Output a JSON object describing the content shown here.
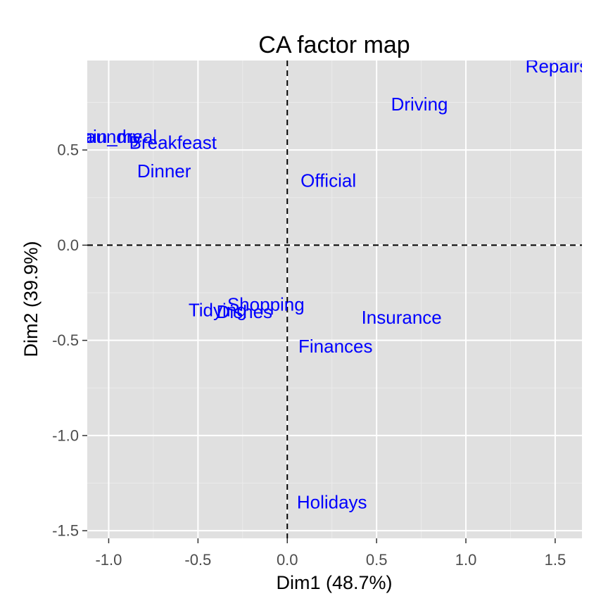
{
  "chart_data": {
    "type": "scatter",
    "title": "CA factor map",
    "xlabel": "Dim1 (48.7%)",
    "ylabel": "Dim2 (39.9%)",
    "xlim": [
      -1.12,
      1.65
    ],
    "ylim": [
      -1.54,
      0.97
    ],
    "xticks": [
      -1.0,
      -0.5,
      0.0,
      0.5,
      1.0,
      1.5
    ],
    "xtick_labels": [
      "-1.0",
      "-0.5",
      "0.0",
      "0.5",
      "1.0",
      "1.5"
    ],
    "yticks": [
      -1.5,
      -1.0,
      -0.5,
      0.0,
      0.5
    ],
    "ytick_labels": [
      "-1.5",
      "-1.0",
      "-0.5",
      "0.0",
      "0.5"
    ],
    "grid": true,
    "reference_lines": {
      "x": 0,
      "y": 0,
      "style": "dashed"
    },
    "colors": {
      "panel": "#e0e0e0",
      "grid_major": "#ffffff",
      "grid_minor": "#ebebeb",
      "point_label": "#0000ff",
      "reference": "#000000"
    },
    "points": [
      {
        "label": "Laundry",
        "x": -1.0,
        "y": 0.57
      },
      {
        "label": "Main_meal",
        "x": -0.98,
        "y": 0.57
      },
      {
        "label": "Breakfeast",
        "x": -0.64,
        "y": 0.54
      },
      {
        "label": "Dinner",
        "x": -0.69,
        "y": 0.39
      },
      {
        "label": "Driving",
        "x": 0.74,
        "y": 0.74
      },
      {
        "label": "Repairs",
        "x": 1.51,
        "y": 0.94
      },
      {
        "label": "Official",
        "x": 0.23,
        "y": 0.34
      },
      {
        "label": "Tidying",
        "x": -0.39,
        "y": -0.34
      },
      {
        "label": "Dishes",
        "x": -0.24,
        "y": -0.35
      },
      {
        "label": "Shopping",
        "x": -0.12,
        "y": -0.31
      },
      {
        "label": "Insurance",
        "x": 0.64,
        "y": -0.38
      },
      {
        "label": "Finances",
        "x": 0.27,
        "y": -0.53
      },
      {
        "label": "Holidays",
        "x": 0.25,
        "y": -1.35
      }
    ]
  }
}
